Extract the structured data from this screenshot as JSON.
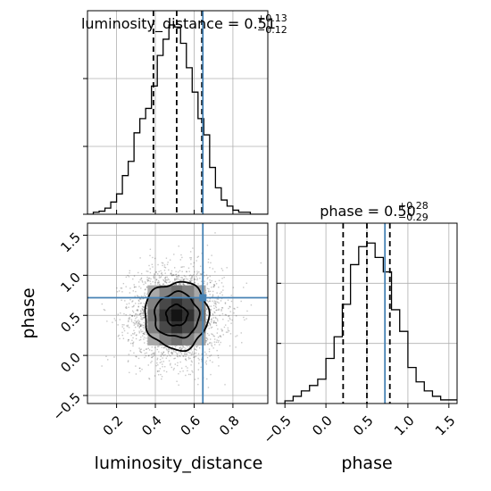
{
  "chart_data": [
    {
      "type": "histogram",
      "panel": "top-left",
      "parameter": "luminosity_distance",
      "title": {
        "prefix": "luminosity_distance = 0.51",
        "plus": "+0.13",
        "minus": "−0.12"
      },
      "xlim": [
        0.05,
        0.98
      ],
      "ylim": [
        0,
        1.0
      ],
      "bins": [
        0.05,
        0.08,
        0.11,
        0.14,
        0.17,
        0.2,
        0.23,
        0.26,
        0.29,
        0.32,
        0.35,
        0.38,
        0.41,
        0.44,
        0.47,
        0.5,
        0.53,
        0.56,
        0.59,
        0.62,
        0.65,
        0.68,
        0.71,
        0.74,
        0.77,
        0.8,
        0.83,
        0.86,
        0.89,
        0.92,
        0.95,
        0.98
      ],
      "counts": [
        0,
        0.01,
        0.015,
        0.03,
        0.06,
        0.1,
        0.19,
        0.26,
        0.4,
        0.47,
        0.52,
        0.63,
        0.78,
        0.86,
        0.93,
        0.92,
        0.84,
        0.72,
        0.6,
        0.47,
        0.39,
        0.23,
        0.13,
        0.07,
        0.04,
        0.02,
        0.01,
        0.01,
        0,
        0,
        0
      ],
      "quantiles": [
        0.39,
        0.51,
        0.64
      ],
      "truth": 0.645,
      "yticks": [
        0,
        0.3333,
        0.6667
      ],
      "grid": true
    },
    {
      "type": "histogram",
      "panel": "bottom-right",
      "parameter": "phase",
      "title": {
        "prefix": "phase = 0.50",
        "plus": "+0.28",
        "minus": "−0.29"
      },
      "xlim": [
        -0.6,
        1.6
      ],
      "ylim": [
        0,
        1.0
      ],
      "bins": [
        -0.6,
        -0.5,
        -0.4,
        -0.3,
        -0.2,
        -0.1,
        0.0,
        0.1,
        0.2,
        0.3,
        0.4,
        0.5,
        0.6,
        0.7,
        0.8,
        0.9,
        1.0,
        1.1,
        1.2,
        1.3,
        1.4,
        1.5,
        1.6
      ],
      "counts": [
        0,
        0.015,
        0.04,
        0.07,
        0.1,
        0.135,
        0.25,
        0.37,
        0.55,
        0.77,
        0.87,
        0.89,
        0.81,
        0.73,
        0.52,
        0.4,
        0.2,
        0.12,
        0.07,
        0.04,
        0.02,
        0.02
      ],
      "quantiles": [
        0.21,
        0.5,
        0.78
      ],
      "truth": 0.72,
      "yticks": [
        0,
        0.3333,
        0.6667
      ],
      "xticks": [
        -0.5,
        0.0,
        0.5,
        1.0,
        1.5
      ],
      "xticklabels": [
        "−0.5",
        "0.0",
        "0.5",
        "1.0",
        "1.5"
      ],
      "xlabel": "phase",
      "grid": true
    },
    {
      "type": "scatter-density",
      "panel": "bottom-left",
      "x_parameter": "luminosity_distance",
      "y_parameter": "phase",
      "xlim": [
        0.05,
        0.98
      ],
      "ylim": [
        -0.6,
        1.65
      ],
      "center": [
        0.51,
        0.5
      ],
      "spread": [
        0.12,
        0.3
      ],
      "n_points": 2600,
      "contours": [
        {
          "level": 0.39,
          "radii": [
            0.055,
            0.13
          ]
        },
        {
          "level": 0.86,
          "radii": [
            0.115,
            0.28
          ]
        },
        {
          "level": 0.99,
          "radii": [
            0.165,
            0.42
          ]
        }
      ],
      "truth": [
        0.645,
        0.72
      ],
      "xticks": [
        0.2,
        0.4,
        0.6,
        0.8
      ],
      "xticklabels": [
        "0.2",
        "0.4",
        "0.6",
        "0.8"
      ],
      "yticks": [
        -0.5,
        0.0,
        0.5,
        1.0,
        1.5
      ],
      "yticklabels": [
        "−0.5",
        "0.0",
        "0.5",
        "1.0",
        "1.5"
      ],
      "xlabel": "luminosity_distance",
      "ylabel": "phase",
      "grid": true
    }
  ],
  "colors": {
    "truth": "#4682b4",
    "histogram": "#000000",
    "grid": "#b0b0b0",
    "points": "#000000"
  }
}
